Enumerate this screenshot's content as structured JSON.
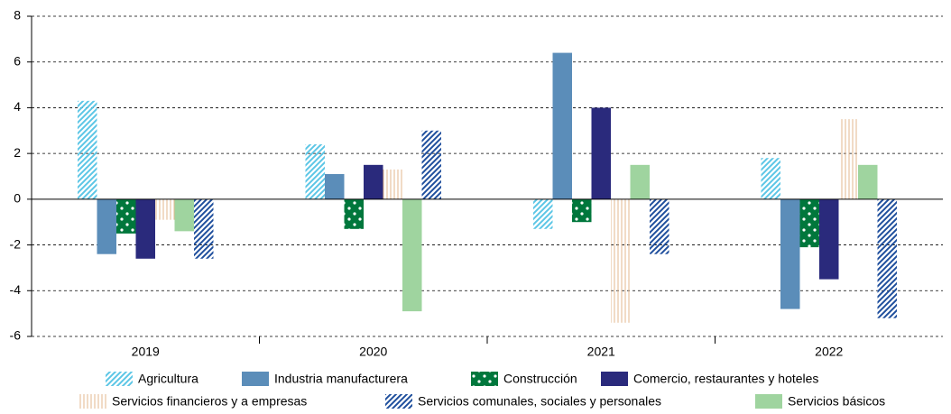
{
  "chart_data": {
    "type": "bar",
    "categories": [
      "2019",
      "2020",
      "2021",
      "2022"
    ],
    "series": [
      {
        "name": "Agricultura",
        "color": "#5cc6e6",
        "pattern": "diagonal",
        "values": [
          4.3,
          2.4,
          -1.3,
          1.8
        ]
      },
      {
        "name": "Industria manufacturera",
        "color": "#5b8db9",
        "pattern": "solid",
        "values": [
          -2.4,
          1.1,
          6.4,
          -4.8
        ]
      },
      {
        "name": "Construcción",
        "color": "#00773c",
        "pattern": "dots",
        "values": [
          -1.5,
          -1.3,
          -1.0,
          -2.1
        ]
      },
      {
        "name": "Comercio, restaurantes y hoteles",
        "color": "#2a2a7c",
        "pattern": "solid",
        "values": [
          -2.6,
          1.5,
          4.0,
          -3.5
        ]
      },
      {
        "name": "Servicios financieros y a empresas",
        "color": "#e3b78e",
        "pattern": "vertical",
        "values": [
          -0.9,
          1.3,
          -5.4,
          3.5
        ]
      },
      {
        "name": "Servicios básicos",
        "color": "#9fd49f",
        "pattern": "solid",
        "values": [
          -1.4,
          -4.9,
          1.5,
          1.5
        ]
      },
      {
        "name": "Servicios comunales, sociales y personales",
        "color": "#1f4f9d",
        "pattern": "diagonal",
        "values": [
          -2.6,
          3.0,
          -2.4,
          -5.2
        ]
      }
    ],
    "ylim": [
      -6,
      8
    ],
    "yticks": [
      -6,
      -4,
      -2,
      0,
      2,
      4,
      6,
      8
    ],
    "grid": true
  }
}
